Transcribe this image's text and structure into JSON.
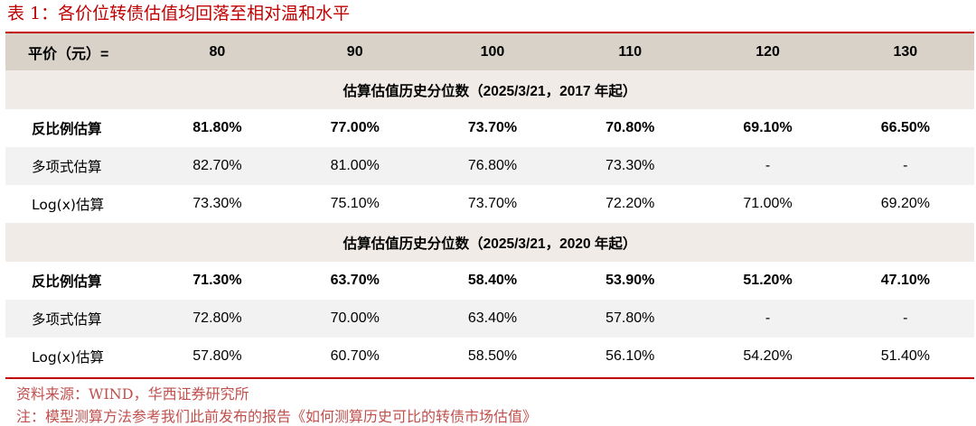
{
  "title": "表 1：各价位转债估值均回落至相对温和水平",
  "header": {
    "label": "平价（元）=",
    "prices": [
      "80",
      "90",
      "100",
      "110",
      "120",
      "130"
    ]
  },
  "sections": [
    {
      "title": "估算估值历史分位数（2025/3/21，2017 年起）",
      "rows": [
        {
          "name": "反比例估算",
          "values": [
            "81.80%",
            "77.00%",
            "73.70%",
            "70.80%",
            "69.10%",
            "66.50%"
          ]
        },
        {
          "name": "多项式估算",
          "values": [
            "82.70%",
            "81.00%",
            "76.80%",
            "73.30%",
            "-",
            "-"
          ]
        },
        {
          "name": "Log(x)估算",
          "values": [
            "73.30%",
            "75.10%",
            "73.70%",
            "72.20%",
            "71.00%",
            "69.20%"
          ]
        }
      ]
    },
    {
      "title": "估算估值历史分位数（2025/3/21，2020 年起）",
      "rows": [
        {
          "name": "反比例估算",
          "values": [
            "71.30%",
            "63.70%",
            "58.40%",
            "53.90%",
            "51.20%",
            "47.10%"
          ]
        },
        {
          "name": "多项式估算",
          "values": [
            "72.80%",
            "70.00%",
            "63.40%",
            "57.80%",
            "-",
            "-"
          ]
        },
        {
          "name": "Log(x)估算",
          "values": [
            "57.80%",
            "60.70%",
            "58.50%",
            "56.10%",
            "54.20%",
            "51.40%"
          ]
        }
      ]
    }
  ],
  "notes": [
    "资料来源：WIND，华西证券研究所",
    "注：模型测算方法参考我们此前发布的报告《如何测算历史可比的转债市场估值》"
  ],
  "colors": {
    "accent": "#c00000",
    "header_bg": "#d9d2c8",
    "section_bg": "#f0ebe6",
    "shade_bg": "#f2f2f2",
    "note": "#c0504d"
  }
}
